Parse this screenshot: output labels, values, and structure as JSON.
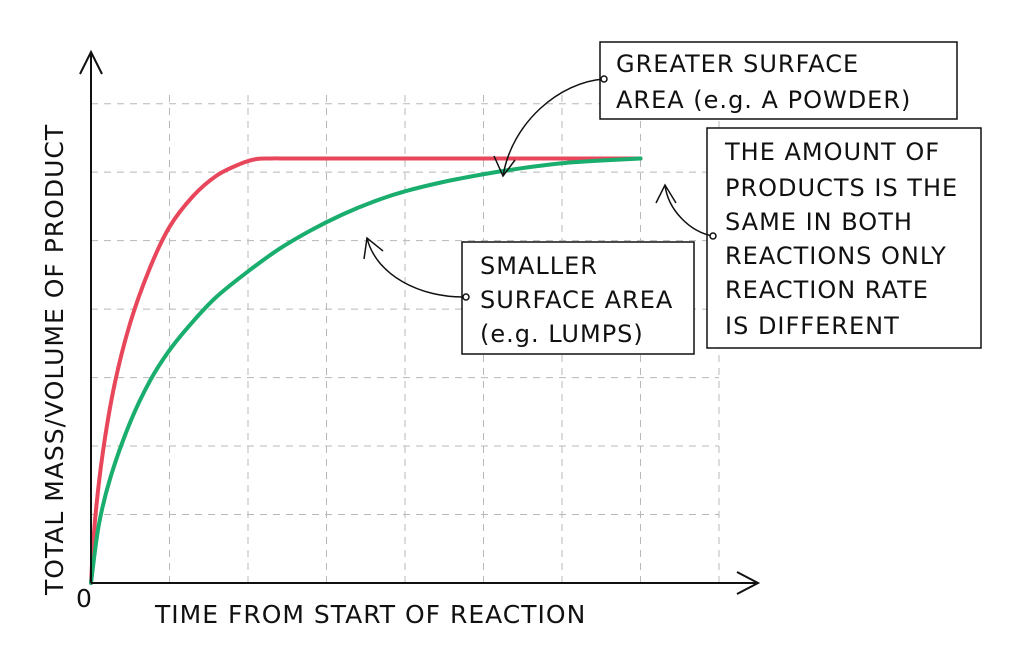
{
  "chart_data": {
    "type": "line",
    "title": "",
    "xlabel": "TIME FROM START OF REACTION",
    "ylabel": "TOTAL MASS/VOLUME OF PRODUCT",
    "origin_label": "0",
    "grid": true,
    "xlim": [
      0,
      8
    ],
    "ylim": [
      0,
      7.2
    ],
    "series": [
      {
        "name": "",
        "color": "#e8475b",
        "x": [
          0,
          0.05,
          0.15,
          0.3,
          0.5,
          0.75,
          1.0,
          1.3,
          1.6,
          1.9,
          2.1,
          2.3,
          2.5,
          2.8,
          3.2,
          3.6,
          4.0,
          5.0,
          6.0,
          7.0
        ],
        "y": [
          0,
          0.9,
          1.9,
          2.9,
          3.8,
          4.6,
          5.2,
          5.65,
          5.95,
          6.12,
          6.19,
          6.2,
          6.2,
          6.2,
          6.2,
          6.2,
          6.2,
          6.2,
          6.2,
          6.2
        ]
      },
      {
        "name": "",
        "color": "#19ad6e",
        "x": [
          0,
          0.1,
          0.25,
          0.5,
          0.75,
          1.0,
          1.3,
          1.6,
          2.0,
          2.4,
          2.8,
          3.2,
          3.6,
          4.0,
          4.5,
          5.0,
          5.5,
          6.0,
          6.5,
          7.0
        ],
        "y": [
          0,
          0.85,
          1.55,
          2.35,
          2.95,
          3.4,
          3.82,
          4.18,
          4.55,
          4.88,
          5.15,
          5.38,
          5.57,
          5.72,
          5.86,
          5.97,
          6.06,
          6.13,
          6.17,
          6.2
        ]
      }
    ],
    "annotations": [
      {
        "lines": [
          "GREATER SURFACE",
          "AREA  (e.g. A POWDER)"
        ]
      },
      {
        "lines": [
          "SMALLER",
          "SURFACE AREA",
          "(e.g.  LUMPS)"
        ]
      },
      {
        "lines": [
          "THE AMOUNT OF",
          "PRODUCTS IS THE",
          "SAME IN BOTH",
          "REACTIONS ONLY",
          "REACTION RATE",
          "IS DIFFERENT"
        ]
      }
    ]
  }
}
